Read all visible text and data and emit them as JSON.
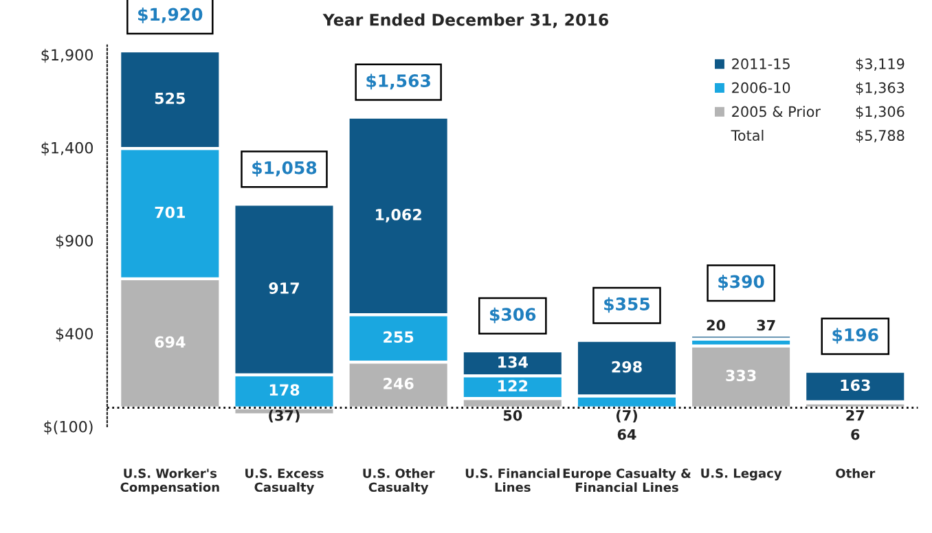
{
  "chart_data": {
    "type": "bar",
    "stacked": true,
    "title": "Year Ended December 31, 2016",
    "categories": [
      "U.S. Worker's\nCompensation",
      "U.S. Excess\nCasualty",
      "U.S. Other\nCasualty",
      "U.S. Financial\nLines",
      "Europe Casualty &\nFinancial Lines",
      "U.S. Legacy",
      "Other"
    ],
    "ref_lines": [
      {
        "axis": "y",
        "value": 0,
        "color": "#000000",
        "line_style": "dotted"
      }
    ],
    "series": [
      {
        "name": "2005 & Prior",
        "color": "#b4b4b4",
        "values": [
          694,
          -37,
          246,
          50,
          -7,
          333,
          27
        ],
        "value_labels": [
          "694",
          "(37)",
          "246",
          "50",
          "(7)",
          "333",
          "27"
        ]
      },
      {
        "name": "2006-10",
        "color": "#1aa7e0",
        "values": [
          701,
          178,
          255,
          122,
          64,
          37,
          6
        ],
        "value_labels": [
          "701",
          "178",
          "255",
          "122",
          "64",
          "37",
          "6"
        ]
      },
      {
        "name": "2011-15",
        "color": "#0f5887",
        "values": [
          525,
          917,
          1062,
          134,
          298,
          20,
          163
        ],
        "value_labels": [
          "525",
          "917",
          "1,062",
          "134",
          "298",
          "20",
          "163"
        ]
      }
    ],
    "totals": [
      "$1,920",
      "$1,058",
      "$1,563",
      "$306",
      "$355",
      "$390",
      "$196"
    ],
    "ylim": [
      -100,
      1950
    ],
    "yticks": [
      {
        "value": -100,
        "label": "$(100)"
      },
      {
        "value": 400,
        "label": "$400"
      },
      {
        "value": 900,
        "label": "$900"
      },
      {
        "value": 1400,
        "label": "$1,400"
      },
      {
        "value": 1900,
        "label": "$1,900"
      }
    ],
    "legend": "top right",
    "marker": "square",
    "grid": false,
    "annotations": [
      "$3,119",
      "$1,363",
      "$1,306",
      "Total",
      "$5,788"
    ]
  }
}
